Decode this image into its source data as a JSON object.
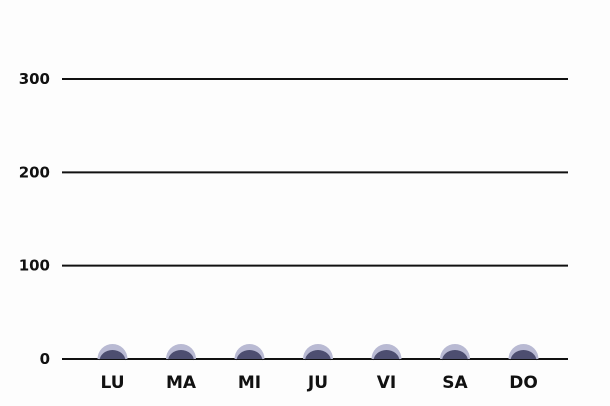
{
  "chart_data": {
    "type": "bar",
    "categories": [
      "LU",
      "MA",
      "MI",
      "JU",
      "VI",
      "SA",
      "DO"
    ],
    "series": [
      {
        "values": [
          0,
          0,
          0,
          0,
          0,
          0,
          0
        ]
      }
    ],
    "y_ticks": [
      0,
      100,
      200,
      300
    ],
    "ylim": [
      0,
      300
    ],
    "grid": true,
    "legend": "none",
    "title": "",
    "xlabel": "",
    "ylabel": ""
  },
  "colors": {
    "background": "#fdfdfd",
    "gridline": "#111111",
    "bar_fill": "#4d4e70",
    "bar_halo": "#b9bad3",
    "text": "#111111"
  }
}
